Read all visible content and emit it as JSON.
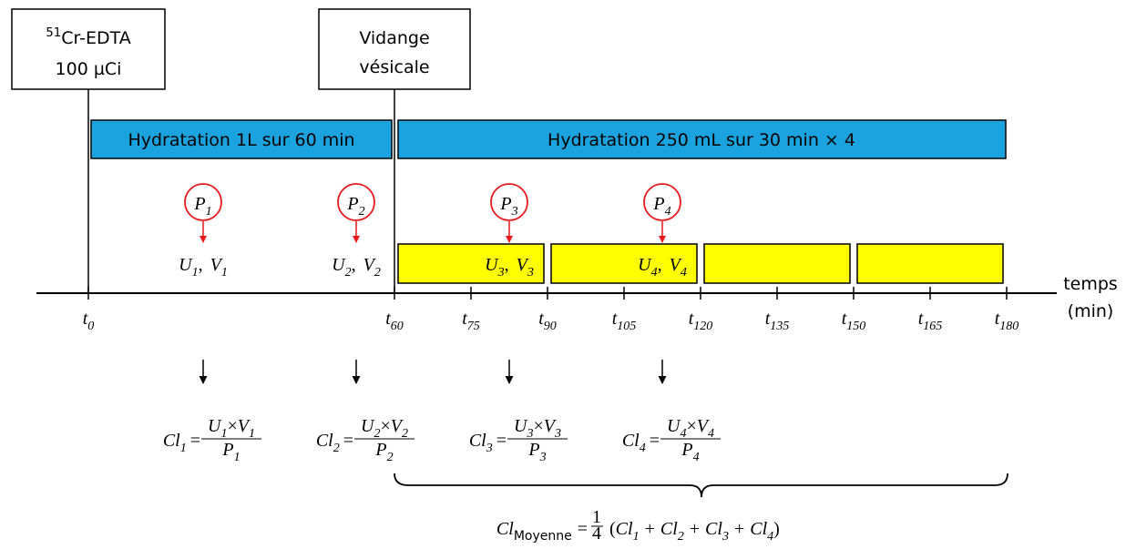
{
  "injection": {
    "isotope_mass": "51",
    "compound": "Cr-EDTA",
    "dose": "100 µCi"
  },
  "voiding": {
    "lines": [
      "Vidange",
      "vésicale"
    ]
  },
  "hydration": [
    "Hydratation 1L sur 60 min",
    "Hydratation 250 mL sur 30 min × 4"
  ],
  "axis": {
    "variable": "t",
    "ticks": [
      "0",
      "60",
      "75",
      "90",
      "105",
      "120",
      "135",
      "150",
      "165",
      "180"
    ],
    "label": [
      "temps",
      "(min)"
    ]
  },
  "symbols": {
    "plasma": "P",
    "urine": "U",
    "volume": "V",
    "clearance": "Cl",
    "times": "×",
    "equals": "=",
    "comma": ",",
    "plus": "+",
    "open": "(",
    "close": ")"
  },
  "samples": [
    "1",
    "2",
    "3",
    "4"
  ],
  "mean": {
    "subscript": "Moyenne",
    "factor_numerator": "1",
    "factor_denominator": "4"
  }
}
